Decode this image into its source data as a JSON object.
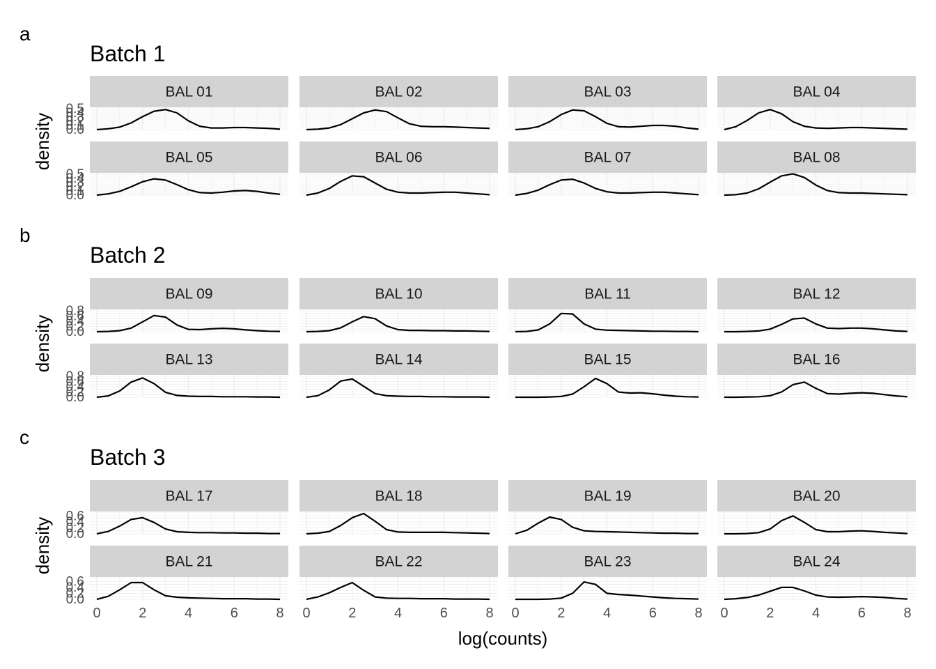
{
  "figure": {
    "xlabel": "log(counts)",
    "ylabel": "density",
    "xticks": [
      "0",
      "2",
      "4",
      "6",
      "8"
    ]
  },
  "chart_data": [
    {
      "type": "line",
      "panel_letter": "a",
      "title": "Batch 1",
      "xlabel": "log(counts)",
      "ylabel": "density",
      "xlim": [
        0,
        8
      ],
      "ylim": [
        0,
        0.5
      ],
      "yticks": [
        "0.0",
        "0.1",
        "0.2",
        "0.3",
        "0.4",
        "0.5"
      ],
      "line_color": "#000000",
      "strip_color": "#d3d3d3",
      "grid": true,
      "facets": [
        {
          "label": "BAL 01",
          "x": [
            0,
            0.5,
            1,
            1.5,
            2,
            2.5,
            3,
            3.5,
            4,
            4.5,
            5,
            5.5,
            6,
            6.5,
            7,
            7.5,
            8
          ],
          "y": [
            0.0,
            0.02,
            0.06,
            0.16,
            0.31,
            0.44,
            0.48,
            0.4,
            0.21,
            0.08,
            0.04,
            0.04,
            0.05,
            0.05,
            0.04,
            0.03,
            0.01
          ]
        },
        {
          "label": "BAL 02",
          "x": [
            0,
            0.5,
            1,
            1.5,
            2,
            2.5,
            3,
            3.5,
            4,
            4.5,
            5,
            5.5,
            6,
            6.5,
            7,
            7.5,
            8
          ],
          "y": [
            0.0,
            0.01,
            0.04,
            0.12,
            0.26,
            0.4,
            0.47,
            0.43,
            0.28,
            0.14,
            0.08,
            0.07,
            0.07,
            0.06,
            0.05,
            0.04,
            0.03
          ]
        },
        {
          "label": "BAL 03",
          "x": [
            0,
            0.5,
            1,
            1.5,
            2,
            2.5,
            3,
            3.5,
            4,
            4.5,
            5,
            5.5,
            6,
            6.5,
            7,
            7.5,
            8
          ],
          "y": [
            0.0,
            0.02,
            0.07,
            0.19,
            0.36,
            0.47,
            0.45,
            0.31,
            0.15,
            0.07,
            0.06,
            0.08,
            0.1,
            0.1,
            0.08,
            0.04,
            0.01
          ]
        },
        {
          "label": "BAL 04",
          "x": [
            0,
            0.5,
            1,
            1.5,
            2,
            2.5,
            3,
            3.5,
            4,
            4.5,
            5,
            5.5,
            6,
            6.5,
            7,
            7.5,
            8
          ],
          "y": [
            0.0,
            0.07,
            0.22,
            0.4,
            0.48,
            0.38,
            0.19,
            0.08,
            0.04,
            0.03,
            0.04,
            0.05,
            0.05,
            0.04,
            0.03,
            0.02,
            0.01
          ]
        },
        {
          "label": "BAL 05",
          "x": [
            0,
            0.5,
            1,
            1.5,
            2,
            2.5,
            3,
            3.5,
            4,
            4.5,
            5,
            5.5,
            6,
            6.5,
            7,
            7.5,
            8
          ],
          "y": [
            0.0,
            0.03,
            0.09,
            0.2,
            0.32,
            0.39,
            0.36,
            0.25,
            0.13,
            0.06,
            0.05,
            0.07,
            0.1,
            0.11,
            0.09,
            0.05,
            0.02
          ]
        },
        {
          "label": "BAL 06",
          "x": [
            0,
            0.5,
            1,
            1.5,
            2,
            2.5,
            3,
            3.5,
            4,
            4.5,
            5,
            5.5,
            6,
            6.5,
            7,
            7.5,
            8
          ],
          "y": [
            0.0,
            0.05,
            0.16,
            0.33,
            0.46,
            0.44,
            0.29,
            0.14,
            0.07,
            0.05,
            0.05,
            0.06,
            0.07,
            0.07,
            0.05,
            0.03,
            0.01
          ]
        },
        {
          "label": "BAL 07",
          "x": [
            0,
            0.5,
            1,
            1.5,
            2,
            2.5,
            3,
            3.5,
            4,
            4.5,
            5,
            5.5,
            6,
            6.5,
            7,
            7.5,
            8
          ],
          "y": [
            0.0,
            0.04,
            0.12,
            0.25,
            0.36,
            0.38,
            0.29,
            0.16,
            0.08,
            0.05,
            0.05,
            0.06,
            0.07,
            0.07,
            0.05,
            0.03,
            0.01
          ]
        },
        {
          "label": "BAL 08",
          "x": [
            0,
            0.5,
            1,
            1.5,
            2,
            2.5,
            3,
            3.5,
            4,
            4.5,
            5,
            5.5,
            6,
            6.5,
            7,
            7.5,
            8
          ],
          "y": [
            0.0,
            0.01,
            0.05,
            0.15,
            0.31,
            0.46,
            0.51,
            0.42,
            0.24,
            0.11,
            0.06,
            0.05,
            0.05,
            0.04,
            0.03,
            0.02,
            0.01
          ]
        }
      ]
    },
    {
      "type": "line",
      "panel_letter": "b",
      "title": "Batch 2",
      "xlabel": "log(counts)",
      "ylabel": "density",
      "xlim": [
        0,
        8
      ],
      "ylim": [
        0,
        0.8
      ],
      "yticks": [
        "0.0",
        "0.2",
        "0.4",
        "0.6",
        "0.8"
      ],
      "line_color": "#000000",
      "strip_color": "#d3d3d3",
      "grid": true,
      "facets": [
        {
          "label": "BAL 09",
          "x": [
            0,
            0.5,
            1,
            1.5,
            2,
            2.5,
            3,
            3.5,
            4,
            4.5,
            5,
            5.5,
            6,
            6.5,
            7,
            7.5,
            8
          ],
          "y": [
            0.0,
            0.01,
            0.04,
            0.14,
            0.38,
            0.62,
            0.56,
            0.26,
            0.09,
            0.08,
            0.11,
            0.13,
            0.11,
            0.07,
            0.04,
            0.02,
            0.01
          ]
        },
        {
          "label": "BAL 10",
          "x": [
            0,
            0.5,
            1,
            1.5,
            2,
            2.5,
            3,
            3.5,
            4,
            4.5,
            5,
            5.5,
            6,
            6.5,
            7,
            7.5,
            8
          ],
          "y": [
            0.0,
            0.01,
            0.04,
            0.15,
            0.38,
            0.58,
            0.5,
            0.22,
            0.08,
            0.05,
            0.05,
            0.04,
            0.04,
            0.03,
            0.03,
            0.02,
            0.01
          ]
        },
        {
          "label": "BAL 11",
          "x": [
            0,
            0.5,
            1,
            1.5,
            2,
            2.5,
            3,
            3.5,
            4,
            4.5,
            5,
            5.5,
            6,
            6.5,
            7,
            7.5,
            8
          ],
          "y": [
            0.0,
            0.01,
            0.07,
            0.3,
            0.7,
            0.68,
            0.3,
            0.1,
            0.06,
            0.05,
            0.04,
            0.03,
            0.02,
            0.02,
            0.01,
            0.01,
            0.0
          ]
        },
        {
          "label": "BAL 12",
          "x": [
            0,
            0.5,
            1,
            1.5,
            2,
            2.5,
            3,
            3.5,
            4,
            4.5,
            5,
            5.5,
            6,
            6.5,
            7,
            7.5,
            8
          ],
          "y": [
            0.0,
            0.0,
            0.01,
            0.03,
            0.1,
            0.28,
            0.49,
            0.52,
            0.3,
            0.14,
            0.12,
            0.14,
            0.14,
            0.11,
            0.07,
            0.03,
            0.01
          ]
        },
        {
          "label": "BAL 13",
          "x": [
            0,
            0.5,
            1,
            1.5,
            2,
            2.5,
            3,
            3.5,
            4,
            4.5,
            5,
            5.5,
            6,
            6.5,
            7,
            7.5,
            8
          ],
          "y": [
            0.0,
            0.05,
            0.24,
            0.58,
            0.74,
            0.52,
            0.19,
            0.07,
            0.04,
            0.03,
            0.03,
            0.02,
            0.02,
            0.02,
            0.01,
            0.01,
            0.0
          ]
        },
        {
          "label": "BAL 14",
          "x": [
            0,
            0.5,
            1,
            1.5,
            2,
            2.5,
            3,
            3.5,
            4,
            4.5,
            5,
            5.5,
            6,
            6.5,
            7,
            7.5,
            8
          ],
          "y": [
            0.0,
            0.06,
            0.28,
            0.62,
            0.7,
            0.42,
            0.14,
            0.06,
            0.04,
            0.03,
            0.03,
            0.02,
            0.02,
            0.01,
            0.01,
            0.01,
            0.0
          ]
        },
        {
          "label": "BAL 15",
          "x": [
            0,
            0.5,
            1,
            1.5,
            2,
            2.5,
            3,
            3.5,
            4,
            4.5,
            5,
            5.5,
            6,
            6.5,
            7,
            7.5,
            8
          ],
          "y": [
            0.0,
            0.0,
            0.0,
            0.01,
            0.03,
            0.12,
            0.4,
            0.72,
            0.52,
            0.2,
            0.16,
            0.17,
            0.13,
            0.08,
            0.04,
            0.02,
            0.01
          ]
        },
        {
          "label": "BAL 16",
          "x": [
            0,
            0.5,
            1,
            1.5,
            2,
            2.5,
            3,
            3.5,
            4,
            4.5,
            5,
            5.5,
            6,
            6.5,
            7,
            7.5,
            8
          ],
          "y": [
            0.0,
            0.0,
            0.01,
            0.02,
            0.06,
            0.2,
            0.48,
            0.58,
            0.34,
            0.14,
            0.12,
            0.15,
            0.17,
            0.15,
            0.1,
            0.05,
            0.02
          ]
        }
      ]
    },
    {
      "type": "line",
      "panel_letter": "c",
      "title": "Batch 3",
      "xlabel": "log(counts)",
      "ylabel": "density",
      "xlim": [
        0,
        8
      ],
      "ylim": [
        0,
        0.7
      ],
      "yticks": [
        "0.0",
        "0.2",
        "0.4",
        "0.6"
      ],
      "line_color": "#000000",
      "strip_color": "#d3d3d3",
      "grid": true,
      "facets": [
        {
          "label": "BAL 17",
          "x": [
            0,
            0.5,
            1,
            1.5,
            2,
            2.5,
            3,
            3.5,
            4,
            4.5,
            5,
            5.5,
            6,
            6.5,
            7,
            7.5,
            8
          ],
          "y": [
            0.0,
            0.08,
            0.26,
            0.48,
            0.54,
            0.38,
            0.16,
            0.07,
            0.05,
            0.04,
            0.04,
            0.03,
            0.03,
            0.02,
            0.02,
            0.01,
            0.01
          ]
        },
        {
          "label": "BAL 18",
          "x": [
            0,
            0.5,
            1,
            1.5,
            2,
            2.5,
            3,
            3.5,
            4,
            4.5,
            5,
            5.5,
            6,
            6.5,
            7,
            7.5,
            8
          ],
          "y": [
            0.0,
            0.02,
            0.08,
            0.28,
            0.54,
            0.68,
            0.42,
            0.14,
            0.06,
            0.05,
            0.05,
            0.05,
            0.05,
            0.04,
            0.03,
            0.02,
            0.01
          ]
        },
        {
          "label": "BAL 19",
          "x": [
            0,
            0.5,
            1,
            1.5,
            2,
            2.5,
            3,
            3.5,
            4,
            4.5,
            5,
            5.5,
            6,
            6.5,
            7,
            7.5,
            8
          ],
          "y": [
            0.0,
            0.12,
            0.36,
            0.56,
            0.48,
            0.22,
            0.1,
            0.08,
            0.07,
            0.06,
            0.05,
            0.04,
            0.03,
            0.02,
            0.02,
            0.01,
            0.01
          ]
        },
        {
          "label": "BAL 20",
          "x": [
            0,
            0.5,
            1,
            1.5,
            2,
            2.5,
            3,
            3.5,
            4,
            4.5,
            5,
            5.5,
            6,
            6.5,
            7,
            7.5,
            8
          ],
          "y": [
            0.0,
            0.0,
            0.01,
            0.04,
            0.16,
            0.44,
            0.6,
            0.38,
            0.14,
            0.07,
            0.07,
            0.09,
            0.1,
            0.08,
            0.05,
            0.03,
            0.01
          ]
        },
        {
          "label": "BAL 21",
          "x": [
            0,
            0.5,
            1,
            1.5,
            2,
            2.5,
            3,
            3.5,
            4,
            4.5,
            5,
            5.5,
            6,
            6.5,
            7,
            7.5,
            8
          ],
          "y": [
            0.0,
            0.1,
            0.32,
            0.56,
            0.56,
            0.32,
            0.12,
            0.07,
            0.05,
            0.04,
            0.03,
            0.02,
            0.02,
            0.02,
            0.01,
            0.01,
            0.0
          ]
        },
        {
          "label": "BAL 22",
          "x": [
            0,
            0.5,
            1,
            1.5,
            2,
            2.5,
            3,
            3.5,
            4,
            4.5,
            5,
            5.5,
            6,
            6.5,
            7,
            7.5,
            8
          ],
          "y": [
            0.0,
            0.08,
            0.22,
            0.4,
            0.56,
            0.3,
            0.08,
            0.04,
            0.03,
            0.03,
            0.02,
            0.02,
            0.02,
            0.01,
            0.01,
            0.01,
            0.0
          ]
        },
        {
          "label": "BAL 23",
          "x": [
            0,
            0.5,
            1,
            1.5,
            2,
            2.5,
            3,
            3.5,
            4,
            4.5,
            5,
            5.5,
            6,
            6.5,
            7,
            7.5,
            8
          ],
          "y": [
            0.0,
            0.0,
            0.0,
            0.01,
            0.04,
            0.2,
            0.58,
            0.5,
            0.2,
            0.16,
            0.14,
            0.11,
            0.08,
            0.05,
            0.03,
            0.02,
            0.01
          ]
        },
        {
          "label": "BAL 24",
          "x": [
            0,
            0.5,
            1,
            1.5,
            2,
            2.5,
            3,
            3.5,
            4,
            4.5,
            5,
            5.5,
            6,
            6.5,
            7,
            7.5,
            8
          ],
          "y": [
            0.0,
            0.02,
            0.06,
            0.14,
            0.27,
            0.4,
            0.4,
            0.28,
            0.14,
            0.08,
            0.07,
            0.08,
            0.09,
            0.08,
            0.06,
            0.03,
            0.01
          ]
        }
      ]
    }
  ]
}
